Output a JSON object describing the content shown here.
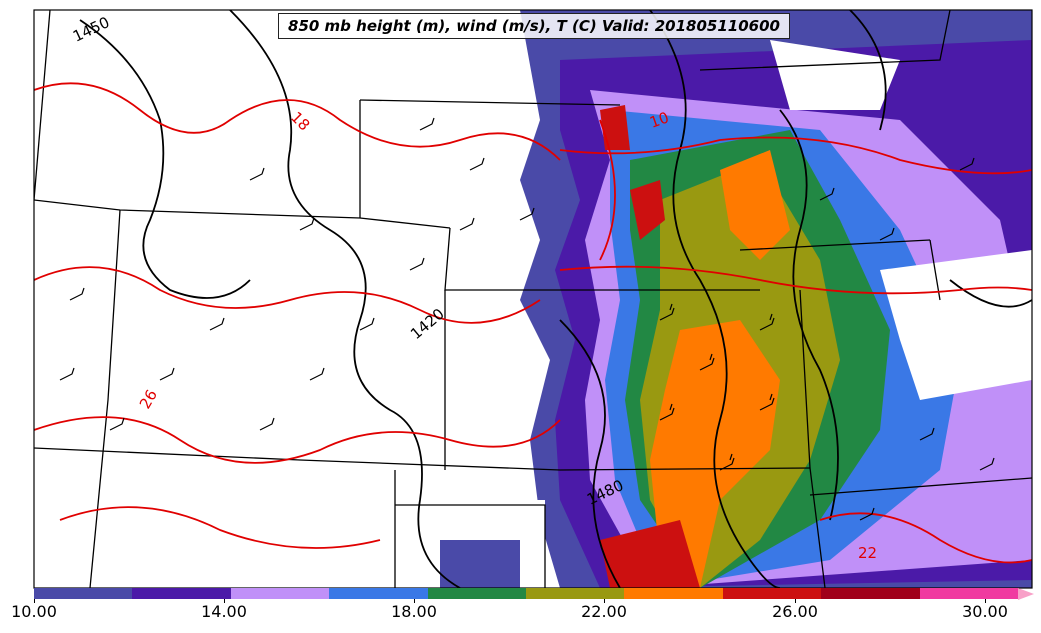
{
  "title": "850 mb height (m), wind (m/s), T (C) Valid: 201805110600",
  "height_contour_labels": [
    "1450",
    "1420",
    "1480"
  ],
  "temperature_contour_labels": [
    "18",
    "26",
    "22",
    "10"
  ],
  "colorbar": {
    "ticks": [
      "10.00",
      "14.00",
      "18.00",
      "22.00",
      "26.00",
      "30.00"
    ],
    "colors": [
      "#4a4aa8",
      "#4b1aa8",
      "#c090f8",
      "#3a78e6",
      "#228844",
      "#999911",
      "#ff7a00",
      "#cc1010",
      "#a0001a",
      "#f03aa0",
      "#f8a0c8"
    ]
  }
}
